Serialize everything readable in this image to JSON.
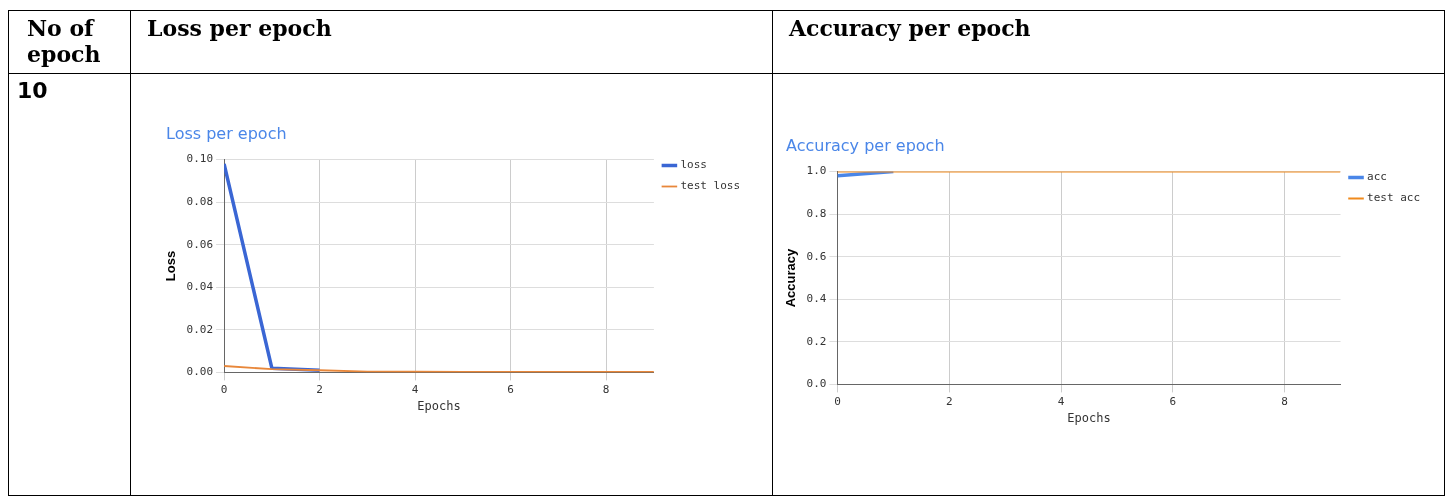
{
  "chart_data": [
    {
      "type": "line",
      "title": "Loss per epoch",
      "xlabel": "Epochs",
      "ylabel": "Loss",
      "annotations": [
        "No of epoch",
        "10",
        "Loss per epoch"
      ],
      "x": [
        0,
        1,
        2,
        3,
        4,
        5,
        6,
        7,
        8,
        9
      ],
      "series": [
        {
          "name": "loss",
          "color": "#3a66d4",
          "values": [
            0.098,
            0.002,
            0.001,
            null,
            null,
            null,
            null,
            null,
            null,
            null
          ]
        },
        {
          "name": "test loss",
          "color": "#e8873a",
          "values": [
            0.003,
            0.0015,
            0.001,
            0.0004,
            0.0003,
            0.0002,
            0.0002,
            0.0002,
            0.0002,
            0.0002
          ]
        }
      ],
      "xlim": [
        0,
        9
      ],
      "xticks": [
        0,
        2,
        4,
        6,
        8
      ],
      "ylim": [
        0,
        0.1
      ],
      "yticks": [
        {
          "value": 0,
          "label": "0.00"
        },
        {
          "value": 0.02,
          "label": "0.02"
        },
        {
          "value": 0.04,
          "label": "0.04"
        },
        {
          "value": 0.06,
          "label": "0.06"
        },
        {
          "value": 0.08,
          "label": "0.08"
        },
        {
          "value": 0.1,
          "label": "0.10"
        }
      ],
      "grid": true,
      "legend": "top right",
      "marker": "none",
      "line_style": "solid"
    },
    {
      "type": "line",
      "title": "Accuracy per epoch",
      "xlabel": "Epochs",
      "ylabel": "Accuracy",
      "annotations": [
        "Accuracy per epoch"
      ],
      "x": [
        0,
        1,
        2,
        3,
        4,
        5,
        6,
        7,
        8,
        9
      ],
      "series": [
        {
          "name": "acc",
          "color": "#4a86e8",
          "values": [
            0.98,
            1,
            null,
            null,
            null,
            null,
            null,
            null,
            null,
            null
          ]
        },
        {
          "name": "test acc",
          "color": "#f08a1c",
          "values": [
            1,
            1,
            1,
            1,
            1,
            1,
            1,
            1,
            1,
            1
          ]
        }
      ],
      "xlim": [
        0,
        9
      ],
      "xticks": [
        0,
        2,
        4,
        6,
        8
      ],
      "ylim": [
        0,
        1
      ],
      "yticks": [
        {
          "value": 0,
          "label": "0.0"
        },
        {
          "value": 0.2,
          "label": "0.2"
        },
        {
          "value": 0.4,
          "label": "0.4"
        },
        {
          "value": 0.6,
          "label": "0.6"
        },
        {
          "value": 0.8,
          "label": "0.8"
        },
        {
          "value": 1,
          "label": "1.0"
        }
      ],
      "grid": true,
      "legend": "top right",
      "marker": "none",
      "line_style": "solid"
    }
  ]
}
